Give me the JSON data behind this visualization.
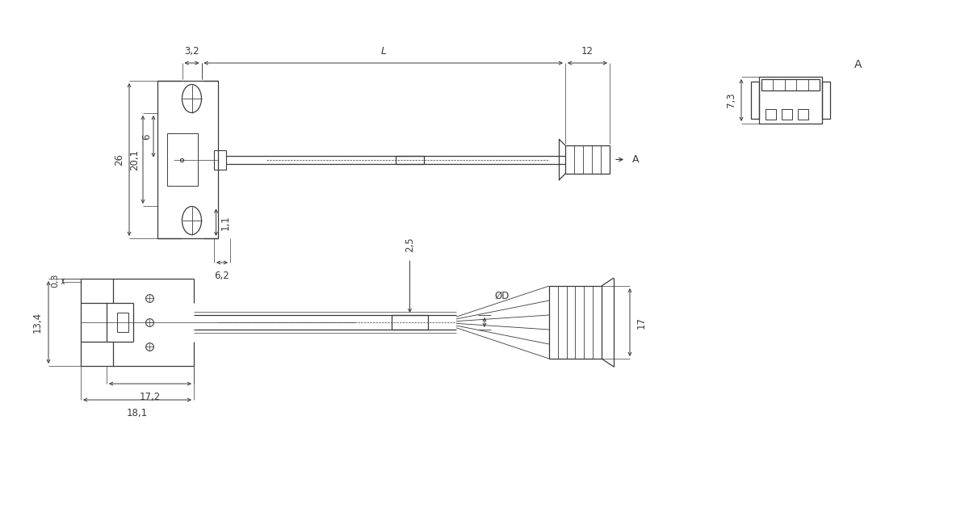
{
  "bg_color": "#ffffff",
  "lc": "#3a3a3a",
  "dc": "#3a3a3a",
  "lw": 0.9,
  "dims": {
    "d32": "3,2",
    "d26": "26",
    "d201": "20,1",
    "d6": "6",
    "d11": "1,1",
    "d62": "6,2",
    "dL": "L",
    "d12": "12",
    "d73": "7,3",
    "dA": "A",
    "d03": "0,3",
    "d134": "13,4",
    "d25": "2,5",
    "dD": "ØD",
    "d17": "17",
    "d172": "17,2",
    "d181": "18,1"
  }
}
